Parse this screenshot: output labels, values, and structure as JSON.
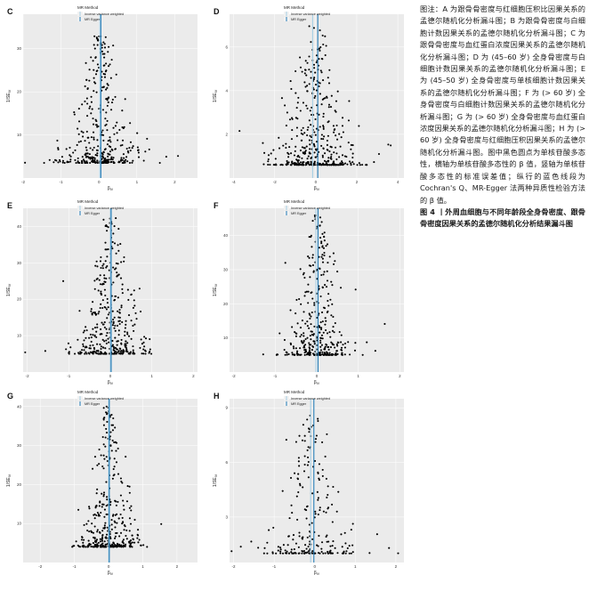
{
  "caption": {
    "note": "图注：A 为跟骨骨密度与红细胞压积比因果关系的孟德尔随机化分析漏斗图；B 为跟骨骨密度与白细胞计数因果关系的孟德尔随机化分析漏斗图；C 为跟骨骨密度与血红蛋白浓度因果关系的孟德尔随机化分析漏斗图；D 为 (45–60 岁) 全身骨密度与白细胞计数因果关系的孟德尔随机化分析漏斗图；E 为 (45–50 岁) 全身骨密度与单核细胞计数因果关系的孟德尔随机化分析漏斗图；F 为 (> 60 岁) 全身骨密度与白细胞计数因果关系的孟德尔随机化分析漏斗图；G 为 (> 60 岁) 全身骨密度与血红蛋白浓度因果关系的孟德尔随机化分析漏斗图；H 为 (> 60 岁) 全身骨密度与红细胞压积因果关系的孟德尔随机化分析漏斗图。图中黑色圆点为单核苷酸多态性，横轴为单核苷酸多态性的 β 值，竖轴为单核苷酸多态性的标准误差值；纵行的蓝色线段为 Cochran's Q、MR-Egger 法两种异质性检验方法的 β 值。",
    "figure_title": "图 4 丨外周血细胞与不同年龄段全身骨密度、跟骨骨密度因果关系的孟德尔随机化分析结果漏斗图"
  },
  "legend": {
    "title": "MR Method",
    "items": [
      "Inverse variance weighted",
      "MR Egger"
    ]
  },
  "colors": {
    "panel_bg": "#ebebeb",
    "grid": "#ffffff",
    "ivw_line": "#a6cee3",
    "egger_line": "#1f78b4",
    "points": "#000000"
  },
  "axis_labels": {
    "x": "β",
    "x_sub": "IV",
    "y": "1/SE",
    "y_sub": "IV"
  },
  "chart_data": [
    {
      "type": "scatter",
      "panel": "C",
      "xlim": [
        -2,
        2.6
      ],
      "ylim": [
        0,
        38
      ],
      "xticks": [
        -2,
        -1,
        0,
        1,
        2
      ],
      "yticks": [
        10,
        20,
        30
      ],
      "ivw": 0.02,
      "egger": 0.05,
      "n": 380,
      "seed": 11,
      "spread": 0.55,
      "ymin": 3.5,
      "ymax": 33
    },
    {
      "type": "scatter",
      "panel": "D",
      "xlim": [
        -4.2,
        4.3
      ],
      "ylim": [
        0,
        7.5
      ],
      "xticks": [
        -4,
        -2,
        0,
        2,
        4
      ],
      "yticks": [
        2,
        4,
        6
      ],
      "ivw": -0.15,
      "egger": 0.1,
      "n": 420,
      "seed": 23,
      "spread": 1.1,
      "ymin": 0.6,
      "ymax": 7
    },
    {
      "type": "scatter",
      "panel": "E",
      "xlim": [
        -2.1,
        2.1
      ],
      "ylim": [
        0,
        45
      ],
      "xticks": [
        -2,
        -1,
        0,
        1,
        2
      ],
      "yticks": [
        10,
        20,
        30,
        40
      ],
      "ivw": 0.0,
      "egger": 0.02,
      "n": 400,
      "seed": 37,
      "spread": 0.45,
      "ymin": 5,
      "ymax": 43
    },
    {
      "type": "scatter",
      "panel": "F",
      "xlim": [
        -2.1,
        2.1
      ],
      "ylim": [
        0,
        48
      ],
      "xticks": [
        -2,
        -1,
        0,
        1,
        2
      ],
      "yticks": [
        10,
        20,
        30,
        40
      ],
      "ivw": -0.02,
      "egger": 0.03,
      "n": 380,
      "seed": 41,
      "spread": 0.4,
      "ymin": 5,
      "ymax": 46
    },
    {
      "type": "scatter",
      "panel": "G",
      "xlim": [
        -2.5,
        2.6
      ],
      "ylim": [
        0,
        42
      ],
      "xticks": [
        -2,
        -1,
        0,
        1,
        2
      ],
      "yticks": [
        10,
        20,
        30,
        40
      ],
      "ivw": 0.0,
      "egger": 0.02,
      "n": 380,
      "seed": 53,
      "spread": 0.45,
      "ymin": 4,
      "ymax": 40
    },
    {
      "type": "scatter",
      "panel": "H",
      "xlim": [
        -2.1,
        2.2
      ],
      "ylim": [
        0.5,
        9.5
      ],
      "xticks": [
        -2,
        -1,
        0,
        1,
        2
      ],
      "yticks": [
        3,
        6,
        9
      ],
      "ivw": -0.1,
      "egger": -0.02,
      "n": 230,
      "seed": 67,
      "spread": 0.55,
      "ymin": 1,
      "ymax": 8.6
    }
  ]
}
